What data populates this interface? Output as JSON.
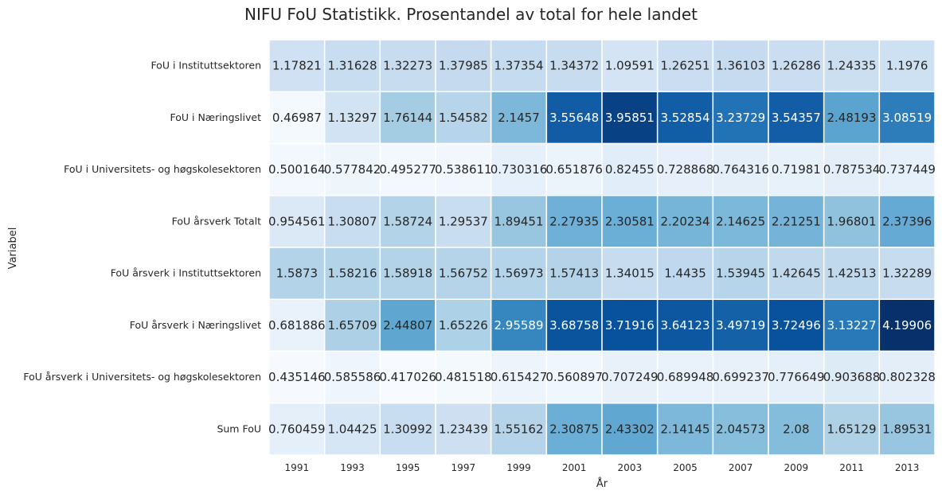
{
  "chart_data": {
    "type": "heatmap",
    "title": "NIFU FoU Statistikk. Prosentandel av total for hele landet",
    "xlabel": "År",
    "ylabel": "Variabel",
    "colormap": "Blues",
    "vmin": 0.417026,
    "vmax": 4.19906,
    "colorbar": false,
    "x": [
      "1991",
      "1993",
      "1995",
      "1997",
      "1999",
      "2001",
      "2003",
      "2005",
      "2007",
      "2009",
      "2011",
      "2013"
    ],
    "y": [
      "FoU i Instituttsektoren",
      "FoU i Næringslivet",
      "FoU i Universitets- og høgskolesektoren",
      "FoU årsverk Totalt",
      "FoU årsverk i Instituttsektoren",
      "FoU årsverk i Næringslivet",
      "FoU årsverk i Universitets- og høgskolesektoren",
      "Sum FoU"
    ],
    "values": [
      [
        "1.17821",
        "1.31628",
        "1.32273",
        "1.37985",
        "1.37354",
        "1.34372",
        "1.09591",
        "1.26251",
        "1.36103",
        "1.26286",
        "1.24335",
        "1.1976"
      ],
      [
        "0.46987",
        "1.13297",
        "1.76144",
        "1.54582",
        "2.1457",
        "3.55648",
        "3.95851",
        "3.52854",
        "3.23729",
        "3.54357",
        "2.48193",
        "3.08519"
      ],
      [
        "0.500164",
        "0.577842",
        "0.495277",
        "0.538611",
        "0.730316",
        "0.651876",
        "0.82455",
        "0.728868",
        "0.764316",
        "0.71981",
        "0.787534",
        "0.737449"
      ],
      [
        "0.954561",
        "1.30807",
        "1.58724",
        "1.29537",
        "1.89451",
        "2.27935",
        "2.30581",
        "2.20234",
        "2.14625",
        "2.21251",
        "1.96801",
        "2.37396"
      ],
      [
        "1.5873",
        "1.58216",
        "1.58918",
        "1.56752",
        "1.56973",
        "1.57413",
        "1.34015",
        "1.4435",
        "1.53945",
        "1.42645",
        "1.42513",
        "1.32289"
      ],
      [
        "0.681886",
        "1.65709",
        "2.44807",
        "1.65226",
        "2.95589",
        "3.68758",
        "3.71916",
        "3.64123",
        "3.49719",
        "3.72496",
        "3.13227",
        "4.19906"
      ],
      [
        "0.435146",
        "0.585586",
        "0.417026",
        "0.481518",
        "0.615427",
        "0.560897",
        "0.707249",
        "0.689948",
        "0.699237",
        "0.776649",
        "0.903688",
        "0.802328"
      ],
      [
        "0.760459",
        "1.04425",
        "1.30992",
        "1.23439",
        "1.55162",
        "2.30875",
        "2.43302",
        "2.14145",
        "2.04573",
        "2.08",
        "1.65129",
        "1.89531"
      ]
    ]
  }
}
